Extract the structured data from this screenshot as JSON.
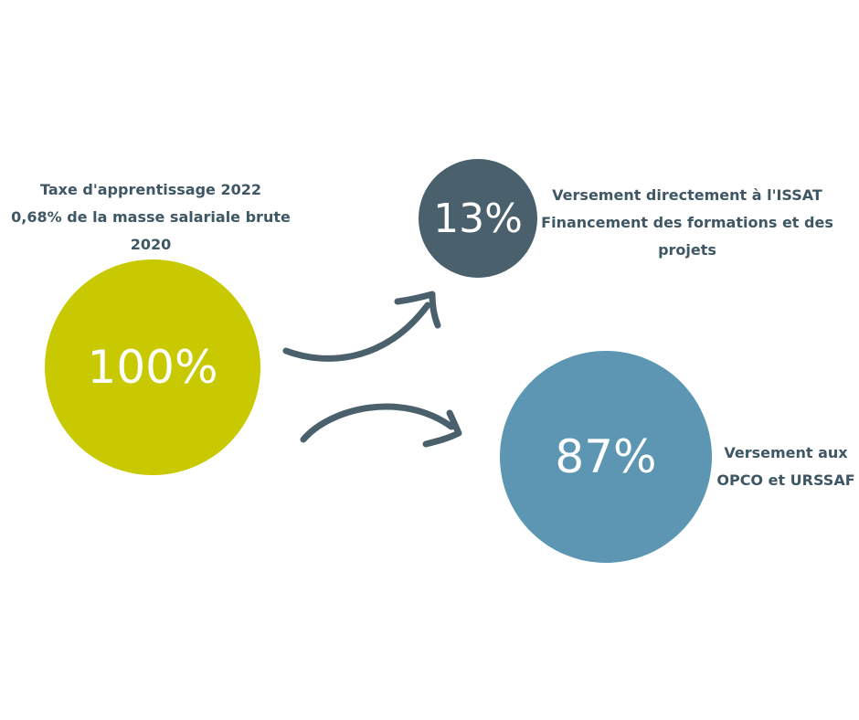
{
  "colors": {
    "main_circle": "#c8c900",
    "small_circle": "#4a616d",
    "large_circle": "#5d96b3",
    "text": "#3f5764",
    "arrow": "#4a616d",
    "background": "#ffffff"
  },
  "source": {
    "percent": "100%",
    "caption": [
      "Taxe d'apprentissage 2022",
      "0,68% de la masse salariale brute",
      "2020"
    ]
  },
  "issat": {
    "percent": "13%",
    "caption": [
      "Versement directement à l'ISSAT",
      "Financement des formations et des",
      "projets"
    ]
  },
  "opco": {
    "percent": "87%",
    "caption": [
      "Versement aux",
      "OPCO et URSSAF"
    ]
  },
  "icons": {
    "arrow_up": "curved-arrow-up-icon",
    "arrow_down": "curved-arrow-down-icon"
  }
}
